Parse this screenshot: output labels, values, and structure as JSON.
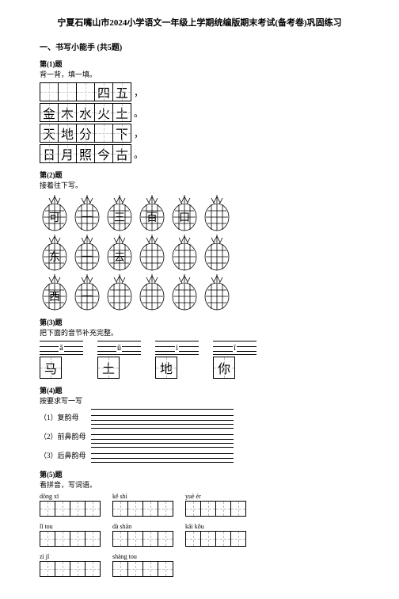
{
  "title": "宁夏石嘴山市2024小学语文一年级上学期统编版期末考试(备考卷)巩固练习",
  "section1": "一、书写小能手 (共5题)",
  "q1": {
    "num": "第(1)题",
    "prompt": "背一背，填一填。",
    "rows": [
      {
        "cells": [
          "",
          "",
          "",
          "四",
          "五"
        ],
        "end": "，"
      },
      {
        "cells": [
          "金",
          "木",
          "水",
          "火",
          "土"
        ],
        "end": "。"
      },
      {
        "cells": [
          "天",
          "地",
          "分",
          "",
          "下"
        ],
        "end": "，"
      },
      {
        "cells": [
          "日",
          "月",
          "照",
          "今",
          "古"
        ],
        "end": "。"
      }
    ]
  },
  "q2": {
    "num": "第(2)题",
    "prompt": "接着往下写。",
    "rows": [
      [
        "可",
        "一",
        "三",
        "百",
        "口",
        ""
      ],
      [
        "东",
        "一",
        "去",
        "",
        "",
        ""
      ],
      [
        "西",
        "一",
        "",
        "",
        "",
        ""
      ]
    ]
  },
  "q3": {
    "num": "第(3)题",
    "prompt": "把下面的音节补充完整。",
    "items": [
      {
        "pinyin": "ǎ",
        "char": "马"
      },
      {
        "pinyin": "ǔ",
        "char": "土"
      },
      {
        "pinyin": "ì",
        "char": "地"
      },
      {
        "pinyin": "ǐ",
        "char": "你"
      }
    ]
  },
  "q4": {
    "num": "第(4)题",
    "prompt": "按要求写一写",
    "lines": [
      "（1）复韵母",
      "（2）前鼻韵母",
      "（3）后鼻韵母"
    ]
  },
  "q5": {
    "num": "第(5)题",
    "prompt": "看拼音，写词语。",
    "row1": [
      "dōng xī",
      "kě shì",
      "yuè ér"
    ],
    "row2": [
      "lǐ tou",
      "dà shān",
      "kāi kǒu"
    ],
    "row3": [
      "zì jǐ",
      "shàng tou"
    ]
  },
  "colors": {
    "text": "#000000",
    "bg": "#ffffff",
    "dash": "#cccccc"
  }
}
